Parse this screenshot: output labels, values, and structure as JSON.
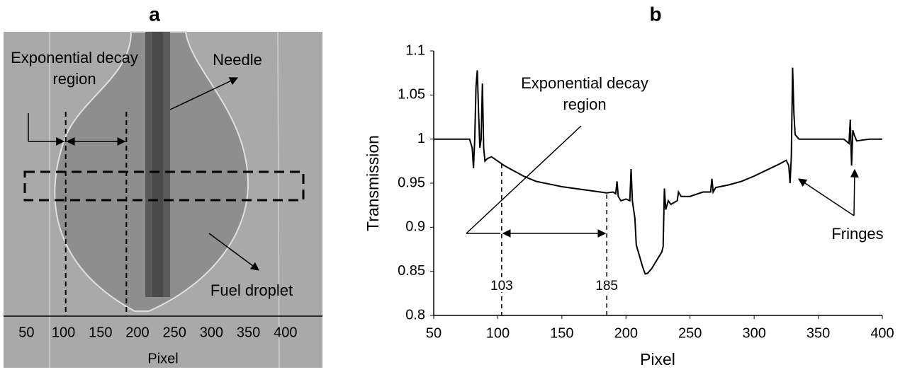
{
  "chart_data": [
    {
      "type": "image",
      "title": "a",
      "xlabel": "Pixel",
      "xlim": [
        19,
        450
      ],
      "xticks": [
        50,
        100,
        150,
        200,
        250,
        300,
        350,
        400
      ],
      "region": [
        103,
        185
      ],
      "annotations": [
        "Exponential decay region",
        "Needle",
        "Fuel droplet"
      ]
    },
    {
      "type": "line",
      "title": "b",
      "xlabel": "Pixel",
      "ylabel": "Transmission",
      "xlim": [
        50,
        400
      ],
      "xticks": [
        50,
        100,
        150,
        200,
        250,
        300,
        350,
        400
      ],
      "ylim": [
        0.8,
        1.1
      ],
      "yticks": [
        0.8,
        0.85,
        0.9,
        0.95,
        1,
        1.05,
        1.1
      ],
      "color": "#000000",
      "region": [
        103,
        185
      ],
      "annotations": [
        "Exponential decay region",
        "Fringes"
      ],
      "x": [
        50,
        60,
        70,
        78,
        80,
        81,
        82,
        83,
        84,
        85,
        86,
        87,
        88,
        89,
        90,
        92,
        95,
        98,
        100,
        105,
        110,
        115,
        120,
        125,
        130,
        140,
        150,
        160,
        170,
        180,
        185,
        190,
        192,
        193,
        194,
        196,
        200,
        203,
        204,
        205,
        207,
        208,
        210,
        213,
        215,
        217,
        220,
        225,
        228,
        229,
        230,
        231,
        233,
        235,
        240,
        241,
        243,
        250,
        260,
        266,
        267,
        268,
        270,
        280,
        290,
        300,
        310,
        320,
        325,
        327,
        328,
        329,
        330,
        331,
        332,
        335,
        340,
        350,
        360,
        370,
        374,
        375,
        376,
        377,
        378,
        380,
        390,
        400
      ],
      "values": [
        1.0,
        1.0,
        1.0,
        1.0,
        0.99,
        0.967,
        1.0,
        1.06,
        1.078,
        1.03,
        0.99,
        1.0,
        1.063,
        0.99,
        0.975,
        0.978,
        0.98,
        0.977,
        0.975,
        0.97,
        0.966,
        0.962,
        0.958,
        0.955,
        0.952,
        0.949,
        0.946,
        0.944,
        0.942,
        0.94,
        0.939,
        0.94,
        0.938,
        0.952,
        0.935,
        0.93,
        0.932,
        0.93,
        0.966,
        0.93,
        0.91,
        0.88,
        0.87,
        0.855,
        0.847,
        0.848,
        0.853,
        0.865,
        0.872,
        0.878,
        0.944,
        0.92,
        0.93,
        0.926,
        0.93,
        0.94,
        0.935,
        0.935,
        0.94,
        0.94,
        0.955,
        0.94,
        0.945,
        0.948,
        0.952,
        0.958,
        0.965,
        0.972,
        0.976,
        0.97,
        0.95,
        0.98,
        1.081,
        1.03,
        1.005,
        1.0,
        1.0,
        1.0,
        1.0,
        1.0,
        0.995,
        1.022,
        0.97,
        1.01,
        1.005,
        0.998,
        1.0,
        1.0
      ]
    }
  ]
}
